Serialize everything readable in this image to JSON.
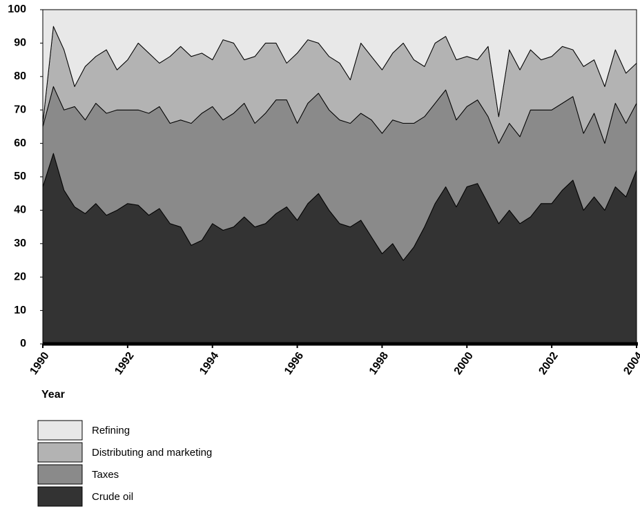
{
  "chart_data": {
    "type": "stacked-area",
    "x_label": "Year",
    "x": [
      1990,
      1990.25,
      1990.5,
      1990.75,
      1991,
      1991.25,
      1991.5,
      1991.75,
      1992,
      1992.25,
      1992.5,
      1992.75,
      1993,
      1993.25,
      1993.5,
      1993.75,
      1994,
      1994.25,
      1994.5,
      1994.75,
      1995,
      1995.25,
      1995.5,
      1995.75,
      1996,
      1996.25,
      1996.5,
      1996.75,
      1997,
      1997.25,
      1997.5,
      1997.75,
      1998,
      1998.25,
      1998.5,
      1998.75,
      1999,
      1999.25,
      1999.5,
      1999.75,
      2000,
      2000.25,
      2000.5,
      2000.75,
      2001,
      2001.25,
      2001.5,
      2001.75,
      2002,
      2002.25,
      2002.5,
      2002.75,
      2003,
      2003.25,
      2003.5,
      2003.75,
      2004
    ],
    "series": [
      {
        "name": "Crude oil",
        "color": "#333333",
        "values": [
          47,
          57,
          46,
          41,
          39,
          42,
          38.5,
          40,
          42,
          41.5,
          38.5,
          40.5,
          36,
          35,
          29.5,
          31,
          36,
          34,
          35,
          38,
          35,
          36,
          39,
          41,
          37,
          42,
          45,
          40,
          36,
          35,
          37,
          32,
          27,
          30,
          25,
          29,
          35,
          42,
          47,
          41,
          47,
          48,
          42,
          36,
          40,
          36,
          38,
          42,
          42,
          46,
          49,
          40,
          44,
          40,
          47,
          44,
          52
        ]
      },
      {
        "name": "Taxes",
        "color": "#8a8a8a",
        "values": [
          18,
          20,
          24,
          30,
          28,
          30,
          30.5,
          30,
          28,
          28.5,
          30.5,
          30.5,
          30,
          32,
          36.5,
          38,
          35,
          33,
          34,
          34,
          31,
          33,
          34,
          32,
          29,
          30,
          30,
          30,
          31,
          31,
          32,
          35,
          36,
          37,
          41,
          37,
          33,
          30,
          29,
          26,
          24,
          25,
          26,
          24,
          26,
          26,
          32,
          28,
          28,
          26,
          25,
          23,
          25,
          20,
          25,
          22,
          20
        ]
      },
      {
        "name": "Distributing and marketing",
        "color": "#b3b3b3",
        "values": [
          1,
          18,
          18,
          6,
          16,
          14,
          19,
          12,
          15,
          20,
          18,
          13,
          20,
          22,
          20,
          18,
          14,
          24,
          21,
          13,
          20,
          21,
          17,
          11,
          21,
          19,
          15,
          16,
          17,
          13,
          21,
          19,
          19,
          20,
          24,
          19,
          15,
          18,
          16,
          18,
          15,
          12,
          21,
          8,
          22,
          20,
          18,
          15,
          16,
          17,
          14,
          20,
          16,
          17,
          16,
          15,
          12
        ]
      },
      {
        "name": "Refining",
        "color": "#e8e8e8",
        "values": [
          34,
          5,
          12,
          23,
          17,
          14,
          12,
          18,
          15,
          10,
          13,
          16,
          14,
          11,
          14,
          13,
          15,
          9,
          10,
          15,
          14,
          10,
          10,
          16,
          13,
          9,
          10,
          14,
          16,
          21,
          10,
          14,
          18,
          13,
          10,
          15,
          17,
          10,
          8,
          15,
          14,
          15,
          11,
          32,
          12,
          18,
          12,
          15,
          14,
          11,
          12,
          17,
          15,
          23,
          12,
          19,
          16
        ]
      }
    ],
    "xlim": [
      1990,
      2004
    ],
    "xticks": [
      1990,
      1992,
      1994,
      1996,
      1998,
      2000,
      2002,
      2004
    ],
    "ylim": [
      0,
      100
    ],
    "yticks": [
      0,
      10,
      20,
      30,
      40,
      50,
      60,
      70,
      80,
      90,
      100
    ],
    "grid": false,
    "legend": "bottom"
  }
}
